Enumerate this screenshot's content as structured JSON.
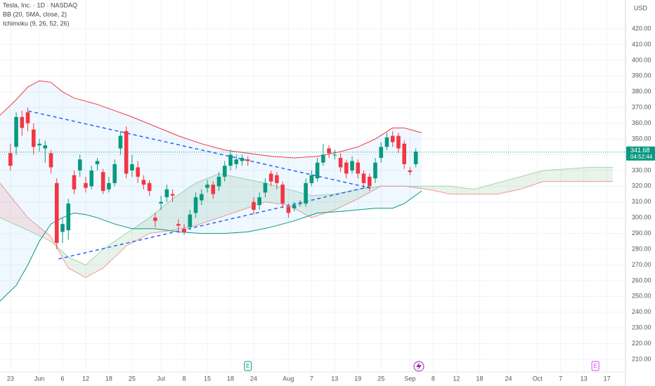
{
  "chart_data": {
    "type": "candlestick",
    "title": "Tesla, Inc. · 1D · NASDAQ",
    "indicators": [
      "BB (20, SMA, close, 2)",
      "Ichimoku (9, 26, 52, 26)"
    ],
    "currency": "USD",
    "x": [
      0,
      1,
      2,
      3,
      4,
      5,
      6,
      7,
      8,
      9,
      10,
      11,
      12,
      13,
      14,
      15,
      16,
      17,
      18,
      19,
      20,
      21,
      22,
      23,
      24,
      25,
      26,
      27,
      28,
      29,
      30,
      31,
      32,
      33,
      34,
      35,
      36,
      37,
      38,
      39,
      40,
      41,
      42,
      43,
      44,
      45,
      46,
      47,
      48,
      49,
      50,
      51,
      52,
      53,
      54,
      55,
      56,
      57,
      58,
      59,
      60,
      61,
      62,
      63,
      64,
      65,
      66,
      67,
      68,
      69,
      70
    ],
    "open": [
      341,
      345,
      364,
      367,
      356,
      346,
      344,
      341,
      322,
      291,
      292,
      327,
      330,
      322,
      320,
      334,
      329,
      318,
      322,
      344,
      355,
      330,
      332,
      324,
      322,
      300,
      309,
      313,
      315,
      296,
      293,
      294,
      303,
      311,
      319,
      321,
      320,
      326,
      333,
      334,
      336,
      337,
      310,
      308,
      316,
      328,
      327,
      321,
      307,
      306,
      309,
      309,
      322,
      325,
      335,
      344,
      340,
      338,
      335,
      330,
      335,
      328,
      326,
      325,
      338,
      345,
      352,
      352,
      347,
      330,
      334
    ],
    "high": [
      347,
      367,
      368,
      370,
      360,
      350,
      349,
      343,
      325,
      300,
      312,
      330,
      340,
      326,
      333,
      338,
      331,
      326,
      337,
      355,
      358,
      340,
      336,
      327,
      324,
      303,
      314,
      321,
      318,
      299,
      296,
      305,
      316,
      318,
      324,
      323,
      329,
      336,
      343,
      340,
      340,
      339,
      313,
      316,
      325,
      330,
      329,
      323,
      309,
      310,
      311,
      325,
      330,
      338,
      347,
      346,
      343,
      341,
      337,
      339,
      337,
      330,
      328,
      338,
      348,
      354,
      355,
      354,
      349,
      332,
      344
    ],
    "low": [
      330,
      340,
      352,
      355,
      340,
      342,
      335,
      328,
      280,
      284,
      286,
      315,
      326,
      316,
      318,
      330,
      315,
      316,
      320,
      340,
      325,
      326,
      322,
      318,
      314,
      294,
      305,
      310,
      310,
      290,
      289,
      292,
      300,
      308,
      316,
      312,
      317,
      323,
      330,
      331,
      333,
      333,
      302,
      305,
      313,
      320,
      318,
      306,
      300,
      304,
      307,
      307,
      320,
      323,
      333,
      338,
      337,
      329,
      325,
      328,
      325,
      319,
      317,
      322,
      335,
      343,
      345,
      341,
      331,
      327,
      332
    ],
    "close": [
      333,
      364,
      357,
      360,
      345,
      347,
      346,
      332,
      284,
      296,
      309,
      318,
      337,
      319,
      330,
      336,
      317,
      322,
      334,
      352,
      328,
      334,
      326,
      321,
      317,
      298,
      310,
      318,
      314,
      295,
      291,
      302,
      313,
      315,
      321,
      315,
      326,
      333,
      340,
      337,
      338,
      336,
      305,
      313,
      322,
      323,
      322,
      309,
      303,
      308,
      309,
      322,
      327,
      335,
      340,
      341,
      340,
      332,
      328,
      336,
      328,
      322,
      320,
      335,
      345,
      351,
      348,
      344,
      334,
      329,
      342
    ],
    "up_color": "#089981",
    "down_color": "#f23645",
    "xlim": [
      -1.8,
      106.2
    ],
    "xticks": [
      {
        "value": 0,
        "label": "23"
      },
      {
        "value": 5,
        "label": "Jun"
      },
      {
        "value": 9,
        "label": "6"
      },
      {
        "value": 13,
        "label": "12"
      },
      {
        "value": 17,
        "label": "18"
      },
      {
        "value": 21,
        "label": "25"
      },
      {
        "value": 26,
        "label": "Jul"
      },
      {
        "value": 30,
        "label": "8"
      },
      {
        "value": 34,
        "label": "15"
      },
      {
        "value": 38,
        "label": "18"
      },
      {
        "value": 42,
        "label": "24"
      },
      {
        "value": 48,
        "label": "Aug"
      },
      {
        "value": 52,
        "label": "7"
      },
      {
        "value": 56,
        "label": "13"
      },
      {
        "value": 60,
        "label": "19"
      },
      {
        "value": 64,
        "label": "25"
      },
      {
        "value": 69,
        "label": "Sep"
      },
      {
        "value": 73,
        "label": "8"
      },
      {
        "value": 77,
        "label": "12"
      },
      {
        "value": 81,
        "label": "18"
      },
      {
        "value": 86,
        "label": "24"
      },
      {
        "value": 91,
        "label": "Oct"
      },
      {
        "value": 95,
        "label": "7"
      },
      {
        "value": 99,
        "label": "13"
      },
      {
        "value": 103,
        "label": "17"
      }
    ],
    "ylim": [
      202,
      438.3
    ],
    "yticks": [
      {
        "value": 210,
        "label": "210.00"
      },
      {
        "value": 220,
        "label": "220.00"
      },
      {
        "value": 230,
        "label": "230.00"
      },
      {
        "value": 240,
        "label": "240.00"
      },
      {
        "value": 250,
        "label": "250.00"
      },
      {
        "value": 260,
        "label": "260.00"
      },
      {
        "value": 270,
        "label": "270.00"
      },
      {
        "value": 280,
        "label": "280.00"
      },
      {
        "value": 290,
        "label": "290.00"
      },
      {
        "value": 300,
        "label": "300.00"
      },
      {
        "value": 310,
        "label": "310.00"
      },
      {
        "value": 320,
        "label": "320.00"
      },
      {
        "value": 330,
        "label": "330.00"
      },
      {
        "value": 340,
        "label": "340.00"
      },
      {
        "value": 350,
        "label": "350.00"
      },
      {
        "value": 360,
        "label": "360.00"
      },
      {
        "value": 370,
        "label": "370.00"
      },
      {
        "value": 380,
        "label": "380.00"
      },
      {
        "value": 390,
        "label": "390.00"
      },
      {
        "value": 400,
        "label": "400.00"
      },
      {
        "value": 410,
        "label": "410.00"
      },
      {
        "value": 420,
        "label": "420.00"
      }
    ],
    "grid": true,
    "bollinger": {
      "x": [
        -1.8,
        1,
        3,
        5,
        7,
        9,
        11,
        13,
        15,
        18,
        21,
        25,
        29,
        33,
        37,
        41,
        45,
        49,
        53,
        57,
        60,
        63,
        66,
        68,
        71
      ],
      "upper": {
        "color": "#f23645",
        "values": [
          365,
          375,
          383,
          387,
          386,
          380,
          376,
          374,
          372,
          368,
          364,
          358,
          352,
          347,
          343,
          341,
          339,
          338,
          339,
          342,
          345,
          350,
          357,
          357,
          354
        ]
      },
      "lower": {
        "color": "#089981",
        "values": [
          247,
          257,
          270,
          285,
          296,
          300,
          303,
          302,
          300,
          296,
          293,
          293,
          291,
          290,
          290,
          291,
          294,
          298,
          303,
          304,
          305,
          306,
          306,
          309,
          317
        ]
      },
      "fill": "rgba(33,150,243,0.07)"
    },
    "ichimoku": {
      "x": [
        -1.8,
        3,
        7,
        10,
        13,
        16,
        20,
        24,
        28,
        32,
        36,
        40,
        44,
        48,
        52,
        56,
        60,
        64,
        68,
        72,
        76,
        80,
        84,
        88,
        92,
        96,
        100,
        104
      ],
      "span_a": {
        "color": "#a5d6a7",
        "values": [
          300,
          292,
          285,
          275,
          270,
          280,
          290,
          300,
          312,
          322,
          328,
          325,
          322,
          318,
          314,
          315,
          318,
          320,
          320,
          320,
          320,
          318,
          322,
          326,
          330,
          331,
          332,
          332
        ]
      },
      "span_b": {
        "color": "#ef9a9a",
        "values": [
          322,
          300,
          288,
          268,
          262,
          268,
          282,
          290,
          292,
          295,
          300,
          305,
          310,
          308,
          300,
          305,
          312,
          320,
          320,
          318,
          315,
          315,
          315,
          318,
          323,
          323,
          323,
          323
        ]
      },
      "up_fill": "rgba(67,160,71,0.12)",
      "down_fill": "rgba(244,67,54,0.12)"
    },
    "trend_lines": [
      {
        "x": [
          3.1,
          62.2
        ],
        "values": [
          367.8,
          318.8
        ],
        "color": "#2962ff"
      },
      {
        "x": [
          8.3,
          62.5
        ],
        "values": [
          273.8,
          320.1
        ],
        "color": "#2962ff"
      }
    ],
    "last_price": {
      "value": 341.68,
      "label": "341.68",
      "countdown": "04:52:44",
      "color": "#089981"
    },
    "events": [
      {
        "x": 41,
        "label": "E",
        "color": "#089981"
      },
      {
        "x": 101,
        "label": "E",
        "color": "#e040fb"
      }
    ]
  }
}
